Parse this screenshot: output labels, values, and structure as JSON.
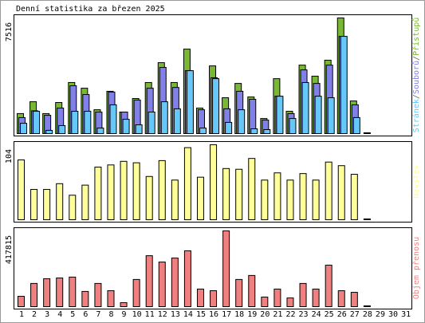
{
  "title": "Denní statistika za březen 2025",
  "chart_data": [
    {
      "type": "bar",
      "legend_separator": "/",
      "ylim": [
        0,
        7516
      ],
      "yticks": [
        7516
      ],
      "series": [
        {
          "name": "Přístupů",
          "color": "#78b832",
          "values": [
            1300,
            2070,
            1300,
            2020,
            3320,
            2950,
            1550,
            2750,
            1400,
            2280,
            3320,
            4610,
            3320,
            5490,
            1660,
            4400,
            2330,
            3260,
            2380,
            980,
            3570,
            1450,
            4450,
            3730,
            4770,
            7516,
            2120,
            null,
            null,
            null,
            null
          ]
        },
        {
          "name": "Souborů",
          "color": "#8080e8",
          "values": [
            1040,
            1480,
            1190,
            1660,
            3110,
            2540,
            1400,
            2700,
            1400,
            2180,
            2950,
            4300,
            3000,
            4090,
            1550,
            3630,
            1610,
            2750,
            2230,
            880,
            2430,
            1300,
            4140,
            3260,
            4450,
            6320,
            1870,
            null,
            null,
            null,
            null
          ]
        },
        {
          "name": "Stránek",
          "color": "#66c8f8",
          "values": [
            670,
            1450,
            210,
            520,
            1450,
            1450,
            360,
            1870,
            930,
            570,
            1400,
            2070,
            1610,
            4090,
            360,
            3570,
            730,
            1550,
            310,
            260,
            2430,
            980,
            3320,
            2430,
            2330,
            6320,
            1040,
            null,
            null,
            null,
            null
          ]
        }
      ]
    },
    {
      "type": "bar",
      "ylim": [
        0,
        104
      ],
      "yticks": [
        104
      ],
      "series": [
        {
          "name": "Návštěv",
          "color": "#ffff99",
          "values": [
            83,
            42,
            42,
            50,
            34,
            48,
            73,
            76,
            81,
            79,
            60,
            82,
            55,
            100,
            59,
            104,
            71,
            70,
            85,
            55,
            65,
            55,
            64,
            55,
            80,
            75,
            63,
            null,
            null,
            null,
            null
          ]
        }
      ]
    },
    {
      "type": "bar",
      "ylim": [
        0,
        417815
      ],
      "yticks": [
        417815
      ],
      "categories": [
        "1",
        "2",
        "3",
        "4",
        "5",
        "6",
        "7",
        "8",
        "9",
        "10",
        "11",
        "12",
        "13",
        "14",
        "15",
        "16",
        "17",
        "18",
        "19",
        "20",
        "21",
        "22",
        "23",
        "24",
        "25",
        "26",
        "27",
        "28",
        "29",
        "30",
        "31"
      ],
      "category_colors": [
        "#8ab33a",
        "#8ab33a",
        "#000000",
        "#000000",
        "#000000",
        "#000000",
        "#000000",
        "#8ab33a",
        "#8ab33a",
        "#000000",
        "#000000",
        "#000000",
        "#000000",
        "#000000",
        "#8ab33a",
        "#8ab33a",
        "#000000",
        "#000000",
        "#000000",
        "#000000",
        "#000000",
        "#8ab33a",
        "#8ab33a",
        "#000000",
        "#000000",
        "#000000",
        "#000000",
        "#000000",
        "#8ab33a",
        "#8ab33a",
        "#000000"
      ],
      "series": [
        {
          "name": "Objem přenosu",
          "color": "#f08080",
          "values": [
            57000,
            128000,
            154000,
            158000,
            163000,
            84000,
            128000,
            88000,
            22000,
            150000,
            281000,
            246000,
            268000,
            308000,
            97000,
            88000,
            417815,
            150000,
            172000,
            53000,
            97000,
            48000,
            128000,
            97000,
            229000,
            88000,
            79000,
            null,
            null,
            null,
            null
          ]
        }
      ]
    }
  ]
}
